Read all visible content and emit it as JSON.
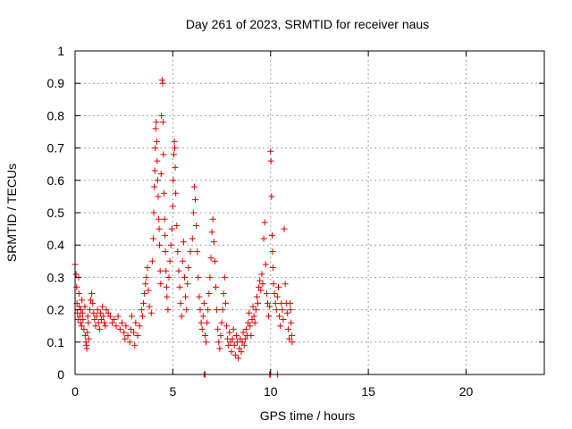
{
  "chart_data": {
    "type": "scatter",
    "title": "Day 261 of 2023, SRMTID for receiver naus",
    "xlabel": "GPS time / hours",
    "ylabel": "SRMTID / TECUs",
    "xlim": [
      0,
      24
    ],
    "ylim": [
      0,
      1
    ],
    "xticks": [
      0,
      5,
      10,
      15,
      20
    ],
    "xtick_labels": [
      "0",
      "5",
      "10",
      "15",
      "20"
    ],
    "yticks": [
      0,
      0.1,
      0.2,
      0.3,
      0.4,
      0.5,
      0.6,
      0.7,
      0.8,
      0.9,
      1
    ],
    "ytick_labels": [
      "0",
      "0.1",
      "0.2",
      "0.3",
      "0.4",
      "0.5",
      "0.6",
      "0.7",
      "0.8",
      "0.9",
      "1"
    ],
    "grid": true,
    "marker": "+",
    "color": "#dd0000",
    "series": [
      {
        "name": "SRMTID",
        "points": [
          [
            0.0,
            0.34
          ],
          [
            0.05,
            0.31
          ],
          [
            0.08,
            0.27
          ],
          [
            0.1,
            0.22
          ],
          [
            0.12,
            0.19
          ],
          [
            0.15,
            0.17
          ],
          [
            0.18,
            0.3
          ],
          [
            0.2,
            0.25
          ],
          [
            0.22,
            0.21
          ],
          [
            0.25,
            0.18
          ],
          [
            0.28,
            0.16
          ],
          [
            0.3,
            0.2
          ],
          [
            0.33,
            0.15
          ],
          [
            0.35,
            0.23
          ],
          [
            0.38,
            0.19
          ],
          [
            0.4,
            0.17
          ],
          [
            0.45,
            0.14
          ],
          [
            0.5,
            0.21
          ],
          [
            0.52,
            0.12
          ],
          [
            0.55,
            0.1
          ],
          [
            0.58,
            0.09
          ],
          [
            0.6,
            0.08
          ],
          [
            0.63,
            0.13
          ],
          [
            0.65,
            0.18
          ],
          [
            0.68,
            0.16
          ],
          [
            0.7,
            0.11
          ],
          [
            0.75,
            0.2
          ],
          [
            0.8,
            0.23
          ],
          [
            0.85,
            0.25
          ],
          [
            0.9,
            0.22
          ],
          [
            0.95,
            0.19
          ],
          [
            1.0,
            0.17
          ],
          [
            1.05,
            0.15
          ],
          [
            1.1,
            0.18
          ],
          [
            1.15,
            0.2
          ],
          [
            1.2,
            0.16
          ],
          [
            1.25,
            0.14
          ],
          [
            1.3,
            0.19
          ],
          [
            1.35,
            0.17
          ],
          [
            1.4,
            0.21
          ],
          [
            1.45,
            0.18
          ],
          [
            1.5,
            0.16
          ],
          [
            1.55,
            0.15
          ],
          [
            1.6,
            0.2
          ],
          [
            1.7,
            0.19
          ],
          [
            1.8,
            0.18
          ],
          [
            1.9,
            0.16
          ],
          [
            2.0,
            0.17
          ],
          [
            2.1,
            0.15
          ],
          [
            2.2,
            0.18
          ],
          [
            2.3,
            0.14
          ],
          [
            2.4,
            0.16
          ],
          [
            2.5,
            0.13
          ],
          [
            2.55,
            0.11
          ],
          [
            2.6,
            0.15
          ],
          [
            2.7,
            0.12
          ],
          [
            2.8,
            0.1
          ],
          [
            2.85,
            0.14
          ],
          [
            2.9,
            0.18
          ],
          [
            3.0,
            0.13
          ],
          [
            3.05,
            0.09
          ],
          [
            3.1,
            0.16
          ],
          [
            3.2,
            0.12
          ],
          [
            3.3,
            0.15
          ],
          [
            3.4,
            0.2
          ],
          [
            3.45,
            0.18
          ],
          [
            3.5,
            0.22
          ],
          [
            3.55,
            0.25
          ],
          [
            3.6,
            0.28
          ],
          [
            3.65,
            0.3
          ],
          [
            3.7,
            0.33
          ],
          [
            3.75,
            0.26
          ],
          [
            3.8,
            0.21
          ],
          [
            3.9,
            0.19
          ],
          [
            3.95,
            0.35
          ],
          [
            4.0,
            0.42
          ],
          [
            4.02,
            0.5
          ],
          [
            4.05,
            0.58
          ],
          [
            4.08,
            0.63
          ],
          [
            4.1,
            0.7
          ],
          [
            4.12,
            0.76
          ],
          [
            4.15,
            0.78
          ],
          [
            4.18,
            0.72
          ],
          [
            4.2,
            0.66
          ],
          [
            4.22,
            0.6
          ],
          [
            4.25,
            0.55
          ],
          [
            4.28,
            0.48
          ],
          [
            4.3,
            0.45
          ],
          [
            4.32,
            0.4
          ],
          [
            4.35,
            0.32
          ],
          [
            4.38,
            0.28
          ],
          [
            4.4,
            0.62
          ],
          [
            4.42,
            0.8
          ],
          [
            4.45,
            0.91
          ],
          [
            4.48,
            0.9
          ],
          [
            4.5,
            0.78
          ],
          [
            4.52,
            0.68
          ],
          [
            4.55,
            0.56
          ],
          [
            4.58,
            0.48
          ],
          [
            4.6,
            0.43
          ],
          [
            4.62,
            0.38
          ],
          [
            4.65,
            0.32
          ],
          [
            4.68,
            0.27
          ],
          [
            4.7,
            0.24
          ],
          [
            4.75,
            0.2
          ],
          [
            4.8,
            0.3
          ],
          [
            4.85,
            0.35
          ],
          [
            4.9,
            0.4
          ],
          [
            4.95,
            0.45
          ],
          [
            5.0,
            0.52
          ],
          [
            5.02,
            0.6
          ],
          [
            5.05,
            0.68
          ],
          [
            5.08,
            0.72
          ],
          [
            5.1,
            0.7
          ],
          [
            5.12,
            0.64
          ],
          [
            5.15,
            0.56
          ],
          [
            5.2,
            0.46
          ],
          [
            5.25,
            0.38
          ],
          [
            5.3,
            0.32
          ],
          [
            5.35,
            0.27
          ],
          [
            5.4,
            0.22
          ],
          [
            5.45,
            0.18
          ],
          [
            5.5,
            0.35
          ],
          [
            5.55,
            0.41
          ],
          [
            5.6,
            0.3
          ],
          [
            5.65,
            0.24
          ],
          [
            5.7,
            0.2
          ],
          [
            5.75,
            0.28
          ],
          [
            5.8,
            0.33
          ],
          [
            5.9,
            0.38
          ],
          [
            6.0,
            0.42
          ],
          [
            6.05,
            0.5
          ],
          [
            6.1,
            0.58
          ],
          [
            6.15,
            0.54
          ],
          [
            6.2,
            0.46
          ],
          [
            6.25,
            0.38
          ],
          [
            6.3,
            0.3
          ],
          [
            6.35,
            0.24
          ],
          [
            6.4,
            0.2
          ],
          [
            6.45,
            0.16
          ],
          [
            6.5,
            0.14
          ],
          [
            6.55,
            0.18
          ],
          [
            6.6,
            0.22
          ],
          [
            6.65,
            0.12
          ],
          [
            6.7,
            0.1
          ],
          [
            6.75,
            0.16
          ],
          [
            6.8,
            0.2
          ],
          [
            6.85,
            0.25
          ],
          [
            6.9,
            0.3
          ],
          [
            6.95,
            0.36
          ],
          [
            7.0,
            0.44
          ],
          [
            7.05,
            0.48
          ],
          [
            7.1,
            0.41
          ],
          [
            7.15,
            0.35
          ],
          [
            7.2,
            0.27
          ],
          [
            7.25,
            0.2
          ],
          [
            7.3,
            0.14
          ],
          [
            7.35,
            0.1
          ],
          [
            7.4,
            0.08
          ],
          [
            7.45,
            0.12
          ],
          [
            7.5,
            0.16
          ],
          [
            7.55,
            0.2
          ],
          [
            7.6,
            0.25
          ],
          [
            7.65,
            0.3
          ],
          [
            7.7,
            0.22
          ],
          [
            7.75,
            0.15
          ],
          [
            7.8,
            0.11
          ],
          [
            7.85,
            0.09
          ],
          [
            7.9,
            0.13
          ],
          [
            7.95,
            0.1
          ],
          [
            8.0,
            0.07
          ],
          [
            8.05,
            0.11
          ],
          [
            8.1,
            0.14
          ],
          [
            8.15,
            0.09
          ],
          [
            8.2,
            0.06
          ],
          [
            8.25,
            0.12
          ],
          [
            8.3,
            0.1
          ],
          [
            8.35,
            0.05
          ],
          [
            8.4,
            0.08
          ],
          [
            8.45,
            0.11
          ],
          [
            8.5,
            0.07
          ],
          [
            8.55,
            0.1
          ],
          [
            8.6,
            0.13
          ],
          [
            8.65,
            0.09
          ],
          [
            8.7,
            0.11
          ],
          [
            8.75,
            0.14
          ],
          [
            8.8,
            0.12
          ],
          [
            8.85,
            0.16
          ],
          [
            8.9,
            0.19
          ],
          [
            8.95,
            0.15
          ],
          [
            9.0,
            0.12
          ],
          [
            9.05,
            0.17
          ],
          [
            9.1,
            0.21
          ],
          [
            9.15,
            0.18
          ],
          [
            9.2,
            0.16
          ],
          [
            9.25,
            0.2
          ],
          [
            9.3,
            0.24
          ],
          [
            9.35,
            0.22
          ],
          [
            9.4,
            0.27
          ],
          [
            9.45,
            0.29
          ],
          [
            9.5,
            0.26
          ],
          [
            9.55,
            0.31
          ],
          [
            9.6,
            0.28
          ],
          [
            9.65,
            0.42
          ],
          [
            9.7,
            0.47
          ],
          [
            9.75,
            0.34
          ],
          [
            9.8,
            0.25
          ],
          [
            9.85,
            0.22
          ],
          [
            9.9,
            0.18
          ],
          [
            9.95,
            0.21
          ],
          [
            10.0,
            0.69
          ],
          [
            10.02,
            0.66
          ],
          [
            10.05,
            0.55
          ],
          [
            10.08,
            0.43
          ],
          [
            10.1,
            0.38
          ],
          [
            10.12,
            0.33
          ],
          [
            10.15,
            0.28
          ],
          [
            10.2,
            0.25
          ],
          [
            10.25,
            0.22
          ],
          [
            10.3,
            0.2
          ],
          [
            10.35,
            0.24
          ],
          [
            10.4,
            0.27
          ],
          [
            10.45,
            0.18
          ],
          [
            10.5,
            0.15
          ],
          [
            10.55,
            0.22
          ],
          [
            10.6,
            0.2
          ],
          [
            10.65,
            0.17
          ],
          [
            10.7,
            0.45
          ],
          [
            10.75,
            0.28
          ],
          [
            10.8,
            0.22
          ],
          [
            10.85,
            0.19
          ],
          [
            10.9,
            0.14
          ],
          [
            10.95,
            0.11
          ],
          [
            11.0,
            0.22
          ],
          [
            11.02,
            0.2
          ],
          [
            11.05,
            0.16
          ],
          [
            11.08,
            0.12
          ],
          [
            11.1,
            0.1
          ],
          [
            6.6,
            0.0
          ],
          [
            6.65,
            0.0
          ],
          [
            9.95,
            0.0
          ],
          [
            10.0,
            0.0
          ],
          [
            10.35,
            0.0
          ]
        ]
      }
    ]
  }
}
